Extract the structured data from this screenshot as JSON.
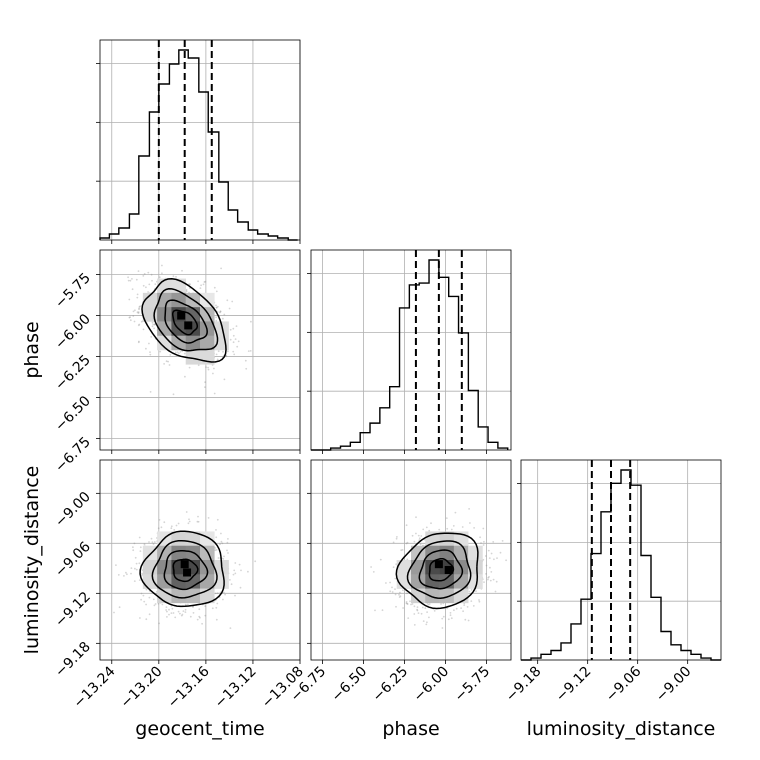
{
  "chart_data": {
    "type": "corner",
    "parameters": [
      "geocent_time",
      "phase",
      "luminosity_distance"
    ],
    "axis_labels": {
      "x": [
        "geocent_time",
        "phase",
        "luminosity_distance"
      ],
      "y": [
        "phase",
        "luminosity_distance"
      ]
    },
    "grid": true,
    "ranges": [
      [
        -13.25,
        -13.08
      ],
      [
        -6.82,
        -5.6
      ],
      [
        -9.2,
        -8.96
      ]
    ],
    "ticks": [
      [
        -13.24,
        -13.2,
        -13.16,
        -13.12,
        -13.08
      ],
      [
        -6.75,
        -6.5,
        -6.25,
        -6.0,
        -5.75
      ],
      [
        -9.18,
        -9.12,
        -9.06,
        -9.0
      ]
    ],
    "tick_labels": [
      [
        "−13.24",
        "−13.20",
        "−13.16",
        "−13.12",
        "−13.08"
      ],
      [
        "−6.75",
        "−6.50",
        "−6.25",
        "−6.00",
        "−5.75"
      ],
      [
        "−9.18",
        "−9.12",
        "−9.06",
        "−9.00"
      ]
    ],
    "quantiles": [
      [
        -13.2,
        -13.178,
        -13.155
      ],
      [
        -6.18,
        -6.04,
        -5.9
      ],
      [
        -9.115,
        -9.092,
        -9.069
      ]
    ],
    "histograms": [
      {
        "param": "geocent_time",
        "bin_edges": [
          -13.25,
          -13.242,
          -13.234,
          -13.225,
          -13.217,
          -13.208,
          -13.2,
          -13.191,
          -13.183,
          -13.175,
          -13.166,
          -13.158,
          -13.149,
          -13.141,
          -13.133,
          -13.124,
          -13.116,
          -13.107,
          -13.099,
          -13.09,
          -13.082
        ],
        "counts": [
          1,
          3,
          6,
          13,
          42,
          64,
          78,
          88,
          95,
          91,
          74,
          54,
          29,
          15,
          9,
          5,
          3,
          2,
          1,
          0
        ]
      },
      {
        "param": "phase",
        "bin_edges": [
          -6.82,
          -6.76,
          -6.7,
          -6.64,
          -6.58,
          -6.52,
          -6.46,
          -6.4,
          -6.34,
          -6.28,
          -6.22,
          -6.16,
          -6.1,
          -6.04,
          -5.98,
          -5.92,
          -5.86,
          -5.8,
          -5.74,
          -5.68,
          -5.62
        ],
        "counts": [
          0,
          0,
          1,
          2,
          4,
          9,
          14,
          22,
          33,
          74,
          86,
          87,
          99,
          90,
          80,
          61,
          31,
          12,
          4,
          1
        ]
      },
      {
        "param": "luminosity_distance",
        "bin_edges": [
          -9.2,
          -9.188,
          -9.176,
          -9.164,
          -9.152,
          -9.14,
          -9.128,
          -9.116,
          -9.104,
          -9.092,
          -9.08,
          -9.068,
          -9.056,
          -9.044,
          -9.032,
          -9.02,
          -9.008,
          -8.996,
          -8.984,
          -8.972,
          -8.96
        ],
        "counts": [
          0,
          1,
          3,
          5,
          9,
          19,
          32,
          56,
          78,
          93,
          100,
          92,
          55,
          33,
          15,
          8,
          5,
          3,
          1,
          0
        ]
      }
    ],
    "joint_2d": [
      {
        "x_param": "geocent_time",
        "y_param": "phase",
        "mean": [
          -13.178,
          -6.04
        ],
        "std": [
          0.017,
          0.12
        ],
        "correlation": -0.4,
        "modes": [
          [
            -13.181,
            -6.0
          ],
          [
            -13.175,
            -6.06
          ]
        ]
      },
      {
        "x_param": "geocent_time",
        "y_param": "luminosity_distance",
        "mean": [
          -13.178,
          -9.092
        ],
        "std": [
          0.017,
          0.022
        ],
        "correlation": 0.0,
        "modes": [
          [
            -13.178,
            -9.085
          ],
          [
            -13.176,
            -9.095
          ]
        ]
      },
      {
        "x_param": "phase",
        "y_param": "luminosity_distance",
        "mean": [
          -6.03,
          -9.092
        ],
        "std": [
          0.12,
          0.022
        ],
        "correlation": 0.1,
        "modes": [
          [
            -6.04,
            -9.085
          ],
          [
            -5.98,
            -9.092
          ]
        ]
      }
    ]
  }
}
